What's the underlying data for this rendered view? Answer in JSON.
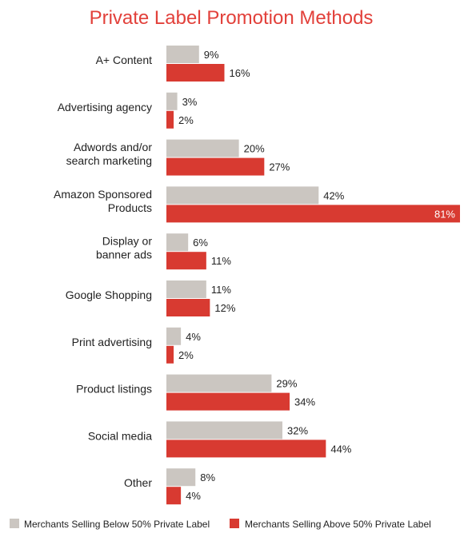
{
  "chart_data": {
    "type": "bar",
    "orientation": "horizontal",
    "title": "Private Label Promotion Methods",
    "categories": [
      [
        "A+ Content"
      ],
      [
        "Advertising agency"
      ],
      [
        "Adwords and/or",
        "search marketing"
      ],
      [
        "Amazon Sponsored",
        "Products"
      ],
      [
        "Display or",
        "banner ads"
      ],
      [
        "Google Shopping"
      ],
      [
        "Print advertising"
      ],
      [
        "Product listings"
      ],
      [
        "Social media"
      ],
      [
        "Other"
      ]
    ],
    "series": [
      {
        "name": "Merchants Selling Below 50% Private Label",
        "color": "#cbc6c1",
        "values": [
          9,
          3,
          20,
          42,
          6,
          11,
          4,
          29,
          32,
          8
        ],
        "labels": [
          "9%",
          "3%",
          "20%",
          "42%",
          "6%",
          "11%",
          "4%",
          "29%",
          "32%",
          "8%"
        ]
      },
      {
        "name": "Merchants Selling Above 50% Private Label",
        "color": "#d83a31",
        "values": [
          16,
          2,
          27,
          81,
          11,
          12,
          2,
          34,
          44,
          4
        ],
        "labels": [
          "16%",
          "2%",
          "27%",
          "81%",
          "11%",
          "12%",
          "2%",
          "34%",
          "44%",
          "4%"
        ]
      }
    ],
    "xlim": [
      0,
      81
    ],
    "grid": false,
    "legend_position": "bottom"
  }
}
